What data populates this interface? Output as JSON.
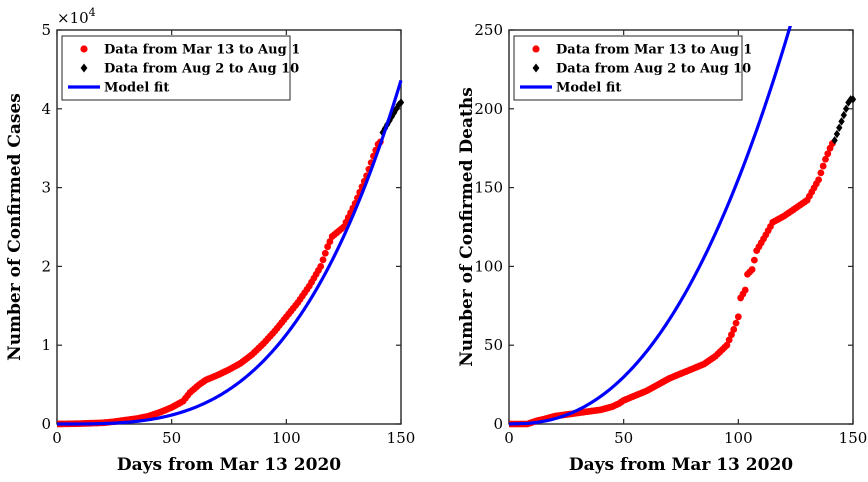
{
  "chart_data": [
    {
      "type": "scatter",
      "xlabel": "Days from Mar 13 2020",
      "ylabel": "Number of Confirmed Cases",
      "xlim": [
        0,
        150
      ],
      "ylim": [
        0,
        50000
      ],
      "xticks": [
        "0",
        "50",
        "100",
        "150"
      ],
      "yticks": [
        "0",
        "1",
        "2",
        "3",
        "4",
        "5"
      ],
      "ytick_values": [
        0,
        10000,
        20000,
        30000,
        40000,
        50000
      ],
      "y_multiplier_base": "×10",
      "y_multiplier_exp": "4",
      "grid": false,
      "legend_position": "top-left",
      "series": [
        {
          "name": "Data from Mar 13 to Aug 1",
          "kind": "scatter",
          "color": "#ff0000",
          "marker": "circle",
          "anchors": [
            [
              0,
              0
            ],
            [
              10,
              50
            ],
            [
              20,
              150
            ],
            [
              25,
              300
            ],
            [
              30,
              500
            ],
            [
              35,
              700
            ],
            [
              40,
              1000
            ],
            [
              45,
              1500
            ],
            [
              50,
              2100
            ],
            [
              55,
              2900
            ],
            [
              58,
              4000
            ],
            [
              62,
              5000
            ],
            [
              65,
              5600
            ],
            [
              70,
              6200
            ],
            [
              75,
              6900
            ],
            [
              80,
              7700
            ],
            [
              85,
              8800
            ],
            [
              90,
              10200
            ],
            [
              95,
              11800
            ],
            [
              100,
              13600
            ],
            [
              105,
              15400
            ],
            [
              110,
              17500
            ],
            [
              115,
              20000
            ],
            [
              118,
              22500
            ],
            [
              120,
              23800
            ],
            [
              125,
              25000
            ],
            [
              130,
              28000
            ],
            [
              135,
              31500
            ],
            [
              138,
              34000
            ],
            [
              140,
              35500
            ],
            [
              141,
              35800
            ]
          ]
        },
        {
          "name": "Data from Aug 2 to Aug 10",
          "kind": "scatter",
          "color": "#000000",
          "marker": "diamond",
          "anchors": [
            [
              142,
              37000
            ],
            [
              143,
              37500
            ],
            [
              144,
              38000
            ],
            [
              145,
              38500
            ],
            [
              146,
              39000
            ],
            [
              147,
              39500
            ],
            [
              148,
              40000
            ],
            [
              149,
              40500
            ],
            [
              150,
              40800
            ]
          ]
        },
        {
          "name": "Model fit",
          "kind": "line",
          "color": "#0000ff",
          "curve": {
            "type": "power",
            "a": 0.0026,
            "b": 3.32,
            "x0": 0,
            "x1": 150
          }
        }
      ]
    },
    {
      "type": "scatter",
      "xlabel": "Days from Mar 13 2020",
      "ylabel": "Number of Confirmed Deaths",
      "xlim": [
        0,
        150
      ],
      "ylim": [
        0,
        250
      ],
      "xticks": [
        "0",
        "50",
        "100",
        "150"
      ],
      "yticks": [
        "0",
        "50",
        "100",
        "150",
        "200",
        "250"
      ],
      "ytick_values": [
        0,
        50,
        100,
        150,
        200,
        250
      ],
      "grid": false,
      "legend_position": "top-left",
      "series": [
        {
          "name": "Data from Mar 13 to Aug 1",
          "kind": "scatter",
          "color": "#ff0000",
          "marker": "circle",
          "anchors": [
            [
              0,
              0
            ],
            [
              8,
              0
            ],
            [
              10,
              1
            ],
            [
              12,
              2
            ],
            [
              15,
              3
            ],
            [
              20,
              5
            ],
            [
              25,
              6
            ],
            [
              30,
              7
            ],
            [
              35,
              8
            ],
            [
              40,
              9
            ],
            [
              45,
              11
            ],
            [
              48,
              13
            ],
            [
              50,
              15
            ],
            [
              55,
              18
            ],
            [
              60,
              21
            ],
            [
              65,
              25
            ],
            [
              70,
              29
            ],
            [
              75,
              32
            ],
            [
              80,
              35
            ],
            [
              85,
              38
            ],
            [
              90,
              43
            ],
            [
              95,
              50
            ],
            [
              98,
              60
            ],
            [
              100,
              68
            ],
            [
              101,
              80
            ],
            [
              103,
              85
            ],
            [
              104,
              95
            ],
            [
              106,
              98
            ],
            [
              108,
              110
            ],
            [
              110,
              115
            ],
            [
              112,
              120
            ],
            [
              115,
              128
            ],
            [
              120,
              132
            ],
            [
              125,
              137
            ],
            [
              130,
              142
            ],
            [
              135,
              155
            ],
            [
              138,
              168
            ],
            [
              140,
              175
            ],
            [
              141,
              178
            ]
          ]
        },
        {
          "name": "Data from Aug 2 to Aug 10",
          "kind": "scatter",
          "color": "#000000",
          "marker": "diamond",
          "anchors": [
            [
              142,
              180
            ],
            [
              143,
              184
            ],
            [
              144,
              188
            ],
            [
              145,
              192
            ],
            [
              146,
              196
            ],
            [
              147,
              200
            ],
            [
              148,
              204
            ],
            [
              149,
              206
            ],
            [
              150,
              206
            ]
          ]
        },
        {
          "name": "Model fit",
          "kind": "line",
          "color": "#0000ff",
          "curve": {
            "type": "power",
            "a": 0.0027,
            "b": 2.38,
            "x0": 8,
            "x1": 150
          }
        }
      ]
    }
  ]
}
